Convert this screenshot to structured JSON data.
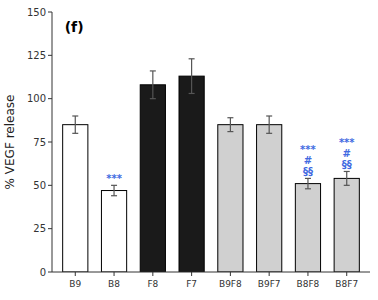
{
  "chart_data": {
    "type": "bar",
    "categories": [
      "B9",
      "B8",
      "F8",
      "F7",
      "B9F8",
      "B9F7",
      "B8F8",
      "B8F7"
    ],
    "values": [
      85,
      47,
      108,
      113,
      85,
      85,
      51,
      54
    ],
    "errors": [
      5,
      3,
      8,
      10,
      4,
      5,
      3,
      4
    ],
    "colors": [
      "white",
      "white",
      "#1a1a1a",
      "#1a1a1a",
      "#d0d0d0",
      "#d0d0d0",
      "#d0d0d0",
      "#d0d0d0"
    ],
    "annotations": [
      {
        "category": "B8",
        "texts": [
          "***"
        ],
        "color": "#4169E1"
      },
      {
        "category": "B8F8",
        "texts": [
          "***",
          "#",
          "§§"
        ],
        "color": "#4169E1"
      },
      {
        "category": "B8F7",
        "texts": [
          "***",
          "#",
          "§§"
        ],
        "color": "#4169E1"
      }
    ],
    "ylabel": "% VEGF release",
    "panel_label": "(f)",
    "ylim": [
      0,
      150
    ],
    "yticks": [
      0,
      25,
      50,
      75,
      100,
      125,
      150
    ],
    "grid": false
  }
}
